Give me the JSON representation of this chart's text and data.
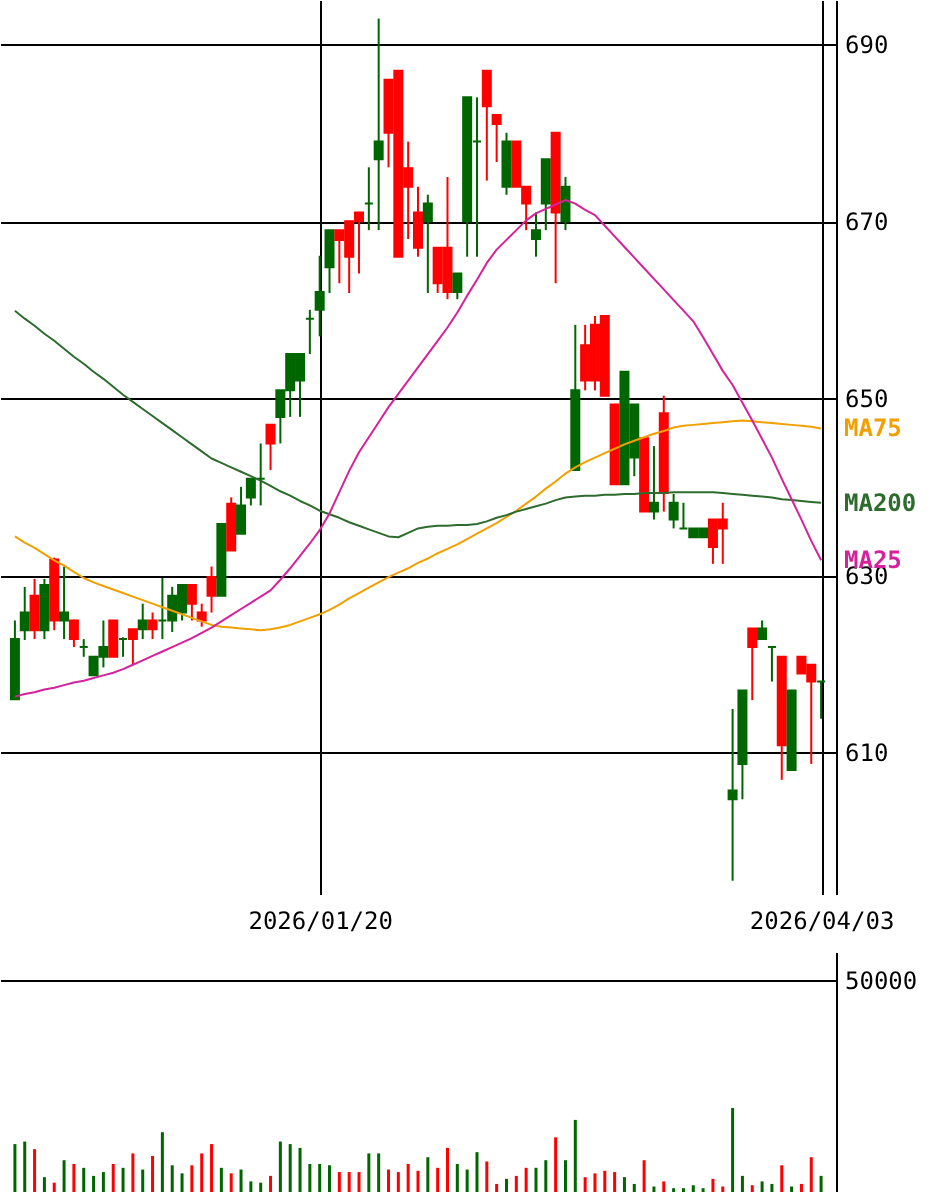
{
  "chart_data": [
    {
      "type": "candlestick",
      "categories": [
        null,
        null,
        null,
        null,
        null,
        null,
        null,
        null,
        null,
        null,
        null,
        null,
        null,
        null,
        null,
        null,
        null,
        null,
        null,
        null,
        null,
        null,
        null,
        null,
        null,
        null,
        null,
        null,
        null,
        null,
        null,
        "2026/01/20",
        null,
        null,
        null,
        null,
        null,
        null,
        null,
        null,
        null,
        null,
        null,
        null,
        null,
        null,
        null,
        null,
        null,
        null,
        null,
        null,
        null,
        null,
        null,
        null,
        null,
        null,
        null,
        null,
        null,
        null,
        null,
        null,
        null,
        null,
        null,
        null,
        null,
        null,
        null,
        null,
        null,
        null,
        null,
        null,
        null,
        null,
        null,
        null,
        null,
        null,
        "2026/04/03"
      ],
      "ohlc": [
        [
          616,
          624.9,
          616,
          622.8
        ],
        [
          623.8,
          628.7,
          622.7,
          625.8
        ],
        [
          627.7,
          629.6,
          622.8,
          623.8
        ],
        [
          623.8,
          629.6,
          622.8,
          628.9
        ],
        [
          631.8,
          632,
          623.8,
          624.9
        ],
        [
          624.9,
          631,
          622.8,
          625.8
        ],
        [
          624.9,
          625,
          621.9,
          622.8
        ],
        [
          621.9,
          622.8,
          620.8,
          621.9
        ],
        [
          618.7,
          620.8,
          618.7,
          620.8
        ],
        [
          620.8,
          624.9,
          619.6,
          621.9
        ],
        [
          624.9,
          624.9,
          620.8,
          620.8
        ],
        [
          622.8,
          623,
          620.8,
          622.8
        ],
        [
          623.9,
          623.9,
          619.9,
          622.8
        ],
        [
          623.9,
          626.8,
          622.8,
          624.9
        ],
        [
          624.9,
          625.8,
          622.8,
          623.9
        ],
        [
          624.9,
          629.7,
          622.8,
          624.9
        ],
        [
          624.9,
          628.7,
          623.6,
          627.7
        ],
        [
          625.8,
          628.9,
          624.9,
          628.9
        ],
        [
          628.9,
          628.9,
          624.9,
          626.8
        ],
        [
          625.8,
          626.8,
          624.2,
          624.9
        ],
        [
          629.8,
          631,
          625.8,
          627.7
        ],
        [
          627.7,
          635.8,
          627.7,
          635.8
        ],
        [
          638.1,
          638.8,
          632.8,
          632.8
        ],
        [
          634.7,
          640,
          634.7,
          637.9
        ],
        [
          638.8,
          640.9,
          637.9,
          640.9
        ],
        [
          640.9,
          644.9,
          637.9,
          640.9
        ],
        [
          647,
          647,
          641.9,
          644.9
        ],
        [
          647.9,
          650.9,
          644.9,
          650.9
        ],
        [
          650.9,
          655,
          647.9,
          655
        ],
        [
          652,
          655,
          647.9,
          655
        ],
        [
          659,
          660,
          655,
          659
        ],
        [
          660,
          666.1,
          657,
          662
        ],
        [
          664.8,
          669,
          661.9,
          669
        ],
        [
          669,
          669,
          663,
          667.9
        ],
        [
          670,
          670,
          661.9,
          666
        ],
        [
          671,
          671,
          664.1,
          670
        ],
        [
          672,
          676.1,
          669,
          672
        ],
        [
          677,
          692.9,
          669,
          679
        ],
        [
          686,
          686,
          676.1,
          680
        ],
        [
          687,
          687,
          666,
          666
        ],
        [
          676,
          679,
          668,
          673.9
        ],
        [
          671,
          673.9,
          666,
          667
        ],
        [
          670,
          673,
          661.9,
          672
        ],
        [
          667,
          667,
          661.9,
          663
        ],
        [
          667,
          675,
          661.2,
          662
        ],
        [
          662,
          664.1,
          661.2,
          664.1
        ],
        [
          670,
          684,
          666,
          684
        ],
        [
          679,
          684,
          666,
          679
        ],
        [
          687,
          687,
          674.6,
          683
        ],
        [
          682,
          682,
          676.7,
          681
        ],
        [
          673.9,
          680,
          673,
          679
        ],
        [
          679,
          679,
          673.9,
          673.9
        ],
        [
          673.9,
          673.9,
          669,
          672
        ],
        [
          668,
          671,
          666,
          669
        ],
        [
          672,
          677,
          669,
          677
        ],
        [
          680,
          680,
          663,
          671
        ],
        [
          670,
          675,
          669,
          673.9
        ],
        [
          641.9,
          658.3,
          641.9,
          650.9
        ],
        [
          656,
          658.3,
          650.9,
          652
        ],
        [
          658.3,
          659.3,
          650.9,
          652
        ],
        [
          659.3,
          659.3,
          650.3,
          650.3
        ],
        [
          649.3,
          649.3,
          640.3,
          640.3
        ],
        [
          640.3,
          653,
          640.3,
          653
        ],
        [
          643.3,
          649.3,
          641.2,
          649.3
        ],
        [
          645.5,
          645.5,
          637.2,
          637.2
        ],
        [
          637.2,
          644.6,
          636.3,
          638.2
        ],
        [
          648.3,
          650.3,
          637.2,
          639.3
        ],
        [
          636.3,
          639.2,
          635.3,
          638.2
        ],
        [
          635.3,
          638.2,
          635.3,
          635.3
        ],
        [
          634.3,
          635.3,
          634.3,
          635.3
        ],
        [
          634.3,
          635.3,
          634.3,
          635.3
        ],
        [
          636.3,
          636.3,
          631.3,
          633.2
        ],
        [
          636.3,
          638.2,
          631.3,
          635.3
        ],
        [
          604.7,
          614.9,
          595.5,
          605.7
        ],
        [
          608.7,
          617,
          604.7,
          617
        ],
        [
          624,
          624,
          615.9,
          621.9
        ],
        [
          622.8,
          624.9,
          622.8,
          624
        ],
        [
          621.9,
          621.9,
          618,
          621.9
        ],
        [
          620.8,
          620.8,
          606.9,
          610.8
        ],
        [
          608,
          617,
          608,
          617
        ],
        [
          620.8,
          620.8,
          618.9,
          618.9
        ],
        [
          619.9,
          619.9,
          608.7,
          618
        ],
        [
          618,
          618,
          613.8,
          618
        ]
      ],
      "colors": [
        "#006600",
        "#006600",
        "#ff0000",
        "#006600",
        "#ff0000",
        "#006600",
        "#ff0000",
        "#006600",
        "#006600",
        "#006600",
        "#ff0000",
        "#006600",
        "#ff0000",
        "#006600",
        "#ff0000",
        "#006600",
        "#006600",
        "#006600",
        "#ff0000",
        "#ff0000",
        "#ff0000",
        "#006600",
        "#ff0000",
        "#006600",
        "#006600",
        "#006600",
        "#ff0000",
        "#006600",
        "#006600",
        "#006600",
        "#006600",
        "#006600",
        "#006600",
        "#ff0000",
        "#ff0000",
        "#ff0000",
        "#006600",
        "#006600",
        "#ff0000",
        "#ff0000",
        "#ff0000",
        "#ff0000",
        "#006600",
        "#ff0000",
        "#ff0000",
        "#006600",
        "#006600",
        "#006600",
        "#ff0000",
        "#ff0000",
        "#006600",
        "#ff0000",
        "#ff0000",
        "#006600",
        "#006600",
        "#ff0000",
        "#006600",
        "#006600",
        "#ff0000",
        "#ff0000",
        "#ff0000",
        "#ff0000",
        "#006600",
        "#006600",
        "#ff0000",
        "#006600",
        "#ff0000",
        "#006600",
        "#006600",
        "#006600",
        "#006600",
        "#ff0000",
        "#ff0000",
        "#006600",
        "#006600",
        "#ff0000",
        "#006600",
        "#006600",
        "#ff0000",
        "#006600",
        "#ff0000",
        "#ff0000",
        "#006600"
      ],
      "series": [
        {
          "name": "MA75",
          "type": "line",
          "color": "#f0a000",
          "values": [
            634.4,
            633.7,
            633.1,
            632.4,
            631.7,
            631.1,
            630.4,
            629.7,
            629.2,
            628.8,
            628.4,
            628.0,
            627.6,
            627.2,
            626.8,
            626.4,
            626.0,
            625.6,
            625.2,
            624.8,
            624.4,
            624.2,
            624.1,
            624.0,
            623.9,
            623.8,
            623.9,
            624.1,
            624.4,
            624.8,
            625.2,
            625.6,
            626.1,
            626.7,
            627.4,
            628.0,
            628.6,
            629.2,
            629.8,
            630.3,
            630.8,
            631.4,
            631.9,
            632.5,
            633.0,
            633.5,
            634.1,
            634.7,
            635.3,
            635.9,
            636.6,
            637.3,
            638.1,
            638.9,
            639.8,
            640.6,
            641.5,
            642.2,
            642.8,
            643.3,
            643.8,
            644.3,
            644.8,
            645.2,
            645.6,
            646.0,
            646.3,
            646.7,
            646.9,
            647.0,
            647.1,
            647.2,
            647.3,
            647.4,
            647.5,
            647.4,
            647.3,
            647.2,
            647.1,
            647.0,
            646.9,
            646.8,
            646.6
          ]
        },
        {
          "name": "MA200",
          "type": "line",
          "color": "#2e6b2e",
          "values": [
            659.9,
            659.0,
            658.2,
            657.3,
            656.5,
            655.6,
            654.7,
            653.9,
            653.0,
            652.2,
            651.3,
            650.4,
            649.6,
            648.8,
            648.0,
            647.2,
            646.4,
            645.6,
            644.8,
            644.0,
            643.2,
            642.7,
            642.2,
            641.7,
            641.2,
            640.7,
            640.1,
            639.5,
            639.0,
            638.4,
            637.9,
            637.3,
            636.9,
            636.5,
            636.0,
            635.6,
            635.2,
            634.8,
            634.4,
            634.3,
            634.8,
            635.3,
            635.5,
            635.6,
            635.6,
            635.7,
            635.7,
            635.8,
            636.1,
            636.5,
            636.8,
            637.2,
            637.5,
            637.8,
            638.1,
            638.5,
            638.8,
            638.9,
            639.0,
            639.0,
            639.1,
            639.1,
            639.2,
            639.2,
            639.3,
            639.3,
            639.3,
            639.4,
            639.4,
            639.4,
            639.4,
            639.4,
            639.3,
            639.2,
            639.1,
            639.0,
            638.9,
            638.8,
            638.6,
            638.5,
            638.4,
            638.3,
            638.2
          ]
        },
        {
          "name": "MA25",
          "type": "line",
          "color": "#d6219c",
          "values": [
            616.3,
            616.6,
            616.8,
            617.1,
            617.3,
            617.6,
            617.9,
            618.1,
            618.4,
            618.7,
            619.0,
            619.4,
            619.9,
            620.4,
            620.9,
            621.4,
            621.9,
            622.4,
            622.9,
            623.5,
            624.1,
            624.8,
            625.5,
            626.2,
            626.9,
            627.6,
            628.3,
            629.5,
            630.8,
            632.2,
            633.6,
            635.1,
            637.0,
            639.4,
            641.8,
            643.9,
            645.6,
            647.3,
            649.0,
            650.5,
            652.0,
            653.5,
            655.0,
            656.5,
            658.0,
            659.7,
            661.6,
            663.4,
            665.3,
            666.8,
            667.9,
            669.0,
            670.1,
            670.9,
            671.4,
            671.9,
            672.4,
            672.0,
            671.3,
            670.7,
            669.5,
            668.3,
            667.1,
            665.9,
            664.7,
            663.5,
            662.3,
            661.1,
            659.9,
            658.7,
            656.9,
            655.0,
            653.1,
            651.5,
            649.5,
            647.5,
            645.4,
            643.3,
            640.9,
            638.6,
            636.3,
            633.9,
            631.7
          ]
        }
      ],
      "ylim": [
        594,
        695
      ],
      "yticks": [
        610,
        630,
        650,
        670,
        690
      ],
      "grid": true
    },
    {
      "type": "bar",
      "categories": [
        null,
        null,
        null,
        null,
        null,
        null,
        null,
        null,
        null,
        null,
        null,
        null,
        null,
        null,
        null,
        null,
        null,
        null,
        null,
        null,
        null,
        null,
        null,
        null,
        null,
        null,
        null,
        null,
        null,
        null,
        null,
        null,
        null,
        null,
        null,
        null,
        null,
        null,
        null,
        null,
        null,
        null,
        null,
        null,
        null,
        null,
        null,
        null,
        null,
        null,
        null,
        null,
        null,
        null,
        null,
        null,
        null,
        null,
        null,
        null,
        null,
        null,
        null,
        null,
        null,
        null,
        null,
        null,
        null,
        null,
        null,
        null,
        null,
        null,
        null,
        null,
        null,
        null,
        null,
        null,
        null,
        null,
        null
      ],
      "values": [
        11300,
        11900,
        10100,
        3500,
        2200,
        7500,
        6600,
        5700,
        3800,
        4700,
        6600,
        5700,
        9100,
        5300,
        8500,
        14100,
        6300,
        4400,
        6300,
        9100,
        11300,
        5700,
        4400,
        5300,
        2500,
        2200,
        3800,
        11900,
        11300,
        10400,
        6600,
        6600,
        6300,
        4700,
        4700,
        4700,
        9100,
        9100,
        5300,
        4700,
        6600,
        5000,
        8200,
        5700,
        10400,
        6600,
        5300,
        9400,
        7200,
        1900,
        3100,
        3800,
        5700,
        5700,
        7500,
        12900,
        7500,
        17000,
        3500,
        4400,
        5000,
        4700,
        3500,
        1900,
        7500,
        1300,
        2500,
        900,
        900,
        1600,
        900,
        3100,
        1300,
        19800,
        3800,
        1600,
        2500,
        1900,
        6300,
        1300,
        1900,
        8200,
        3800
      ],
      "colors": [
        "#006600",
        "#006600",
        "#ff0000",
        "#006600",
        "#ff0000",
        "#006600",
        "#ff0000",
        "#006600",
        "#006600",
        "#006600",
        "#ff0000",
        "#006600",
        "#ff0000",
        "#006600",
        "#ff0000",
        "#006600",
        "#006600",
        "#006600",
        "#ff0000",
        "#ff0000",
        "#ff0000",
        "#006600",
        "#ff0000",
        "#006600",
        "#006600",
        "#006600",
        "#ff0000",
        "#006600",
        "#006600",
        "#006600",
        "#006600",
        "#006600",
        "#006600",
        "#ff0000",
        "#ff0000",
        "#ff0000",
        "#006600",
        "#006600",
        "#ff0000",
        "#ff0000",
        "#ff0000",
        "#ff0000",
        "#006600",
        "#ff0000",
        "#ff0000",
        "#006600",
        "#006600",
        "#006600",
        "#ff0000",
        "#ff0000",
        "#006600",
        "#ff0000",
        "#ff0000",
        "#006600",
        "#006600",
        "#ff0000",
        "#006600",
        "#006600",
        "#ff0000",
        "#ff0000",
        "#ff0000",
        "#ff0000",
        "#006600",
        "#006600",
        "#ff0000",
        "#006600",
        "#ff0000",
        "#006600",
        "#006600",
        "#006600",
        "#006600",
        "#ff0000",
        "#ff0000",
        "#006600",
        "#006600",
        "#ff0000",
        "#006600",
        "#006600",
        "#ff0000",
        "#006600",
        "#ff0000",
        "#ff0000",
        "#006600"
      ],
      "ylim": [
        0,
        56600
      ],
      "yticks": [
        50000
      ],
      "grid": true,
      "tick_labels": "y"
    }
  ]
}
